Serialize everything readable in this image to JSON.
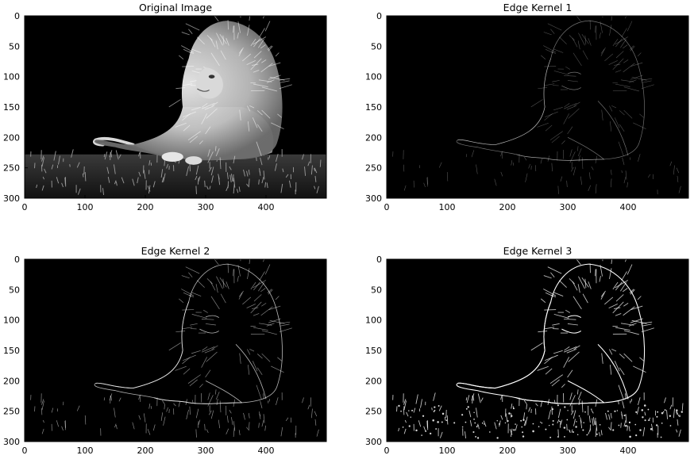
{
  "chart_data": [
    {
      "type": "image",
      "title": "Original Image",
      "x_ticks": [
        0,
        100,
        200,
        300,
        400
      ],
      "y_ticks": [
        0,
        50,
        100,
        150,
        200,
        250,
        300
      ],
      "xlim": [
        0,
        500
      ],
      "ylim": [
        300,
        0
      ],
      "colormap": "gray",
      "style": "photo"
    },
    {
      "type": "image",
      "title": "Edge Kernel 1",
      "x_ticks": [
        0,
        100,
        200,
        300,
        400
      ],
      "y_ticks": [
        0,
        50,
        100,
        150,
        200,
        250,
        300
      ],
      "xlim": [
        0,
        500
      ],
      "ylim": [
        300,
        0
      ],
      "colormap": "gray",
      "style": "edge-faint"
    },
    {
      "type": "image",
      "title": "Edge Kernel 2",
      "x_ticks": [
        0,
        100,
        200,
        300,
        400
      ],
      "y_ticks": [
        0,
        50,
        100,
        150,
        200,
        250,
        300
      ],
      "xlim": [
        0,
        500
      ],
      "ylim": [
        300,
        0
      ],
      "colormap": "gray",
      "style": "edge-medium"
    },
    {
      "type": "image",
      "title": "Edge Kernel 3",
      "x_ticks": [
        0,
        100,
        200,
        300,
        400
      ],
      "y_ticks": [
        0,
        50,
        100,
        150,
        200,
        250,
        300
      ],
      "xlim": [
        0,
        500
      ],
      "ylim": [
        300,
        0
      ],
      "colormap": "gray",
      "style": "edge-strong"
    }
  ]
}
